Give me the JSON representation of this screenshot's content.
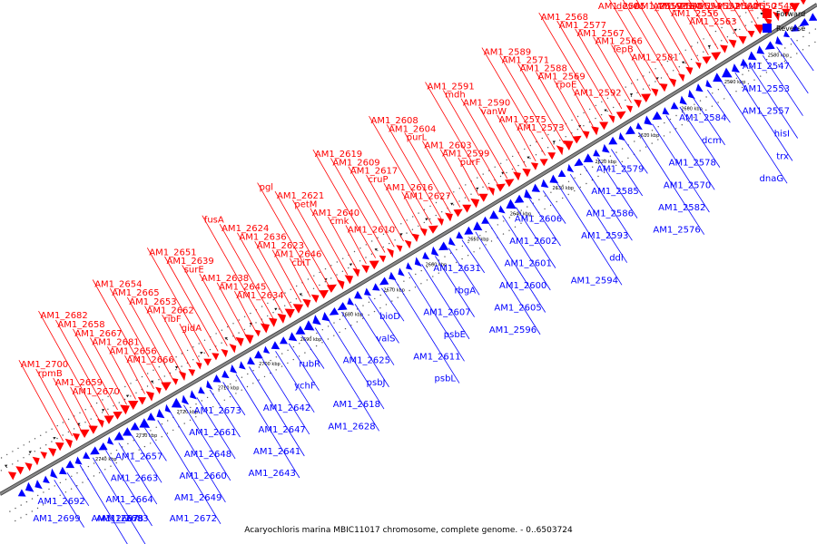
{
  "caption": "Acaryochloris marina MBIC11017 chromosome, complete genome. - 0..6503724",
  "legend": [
    {
      "label": "Forward",
      "color": "#ff0000"
    },
    {
      "label": "Reverse",
      "color": "#0000ff"
    }
  ],
  "colors": {
    "forward": "#ff0000",
    "reverse": "#0000ff",
    "backbone": "#888888"
  },
  "kbp_ticks": [
    "2580 kbp",
    "2590 kbp",
    "2600 kbp",
    "2610 kbp",
    "2620 kbp",
    "2630 kbp",
    "2640 kbp",
    "2650 kbp",
    "2660 kbp",
    "2670 kbp",
    "2680 kbp",
    "2690 kbp",
    "2700 kbp",
    "2710 kbp",
    "2720 kbp",
    "2730 kbp",
    "2740 kbp"
  ],
  "reverse_labels": [
    "AM1_2547",
    "AM1_2553",
    "AM1_2557",
    "hisI",
    "trx",
    "dnaG",
    "AM1_2584",
    "dcm",
    "AM1_2578",
    "AM1_2570",
    "AM1_2582",
    "AM1_2576",
    "AM1_2579",
    "AM1_2585",
    "AM1_2586",
    "AM1_2593",
    "ddl",
    "AM1_2594",
    "AM1_2606",
    "AM1_2602",
    "AM1_2601",
    "AM1_2600",
    "AM1_2605",
    "AM1_2596",
    "AM1_2631",
    "rbgA",
    "AM1_2607",
    "psbE",
    "AM1_2611",
    "psbL",
    "bioD",
    "valS",
    "AM1_2625",
    "psbJ",
    "AM1_2618",
    "AM1_2628",
    "rubR",
    "ychF",
    "AM1_2642",
    "AM1_2647",
    "AM1_2641",
    "AM1_2643",
    "AM1_2673",
    "AM1_2661",
    "AM1_2648",
    "AM1_2660",
    "AM1_2649",
    "AM1_2672",
    "AM1_2657",
    "AM1_2663",
    "AM1_2664",
    "AM1_2683",
    "AM1_2678",
    "AM1_2687",
    "AM1_2692",
    "AM1_2699"
  ],
  "forward_labels": [
    "AM1_2548",
    "AM1_2550",
    "AM1_2560",
    "AM1_2552",
    "AM1_2554",
    "AM1_2555",
    "AM1_2563",
    "AM1_2556",
    "AM1_2564",
    "AM1_2559",
    "devC",
    "AM1_2565",
    "AM1_2581",
    "lepB",
    "AM1_2566",
    "AM1_2567",
    "AM1_2577",
    "AM1_2568",
    "AM1_2592",
    "rpoE",
    "AM1_2569",
    "AM1_2588",
    "AM1_2571",
    "AM1_2589",
    "AM1_2573",
    "AM1_2575",
    "vanW",
    "AM1_2590",
    "mdh",
    "AM1_2591",
    "purF",
    "AM1_2599",
    "AM1_2603",
    "purL",
    "AM1_2604",
    "AM1_2608",
    "AM1_2627",
    "AM1_2616",
    "cruP",
    "AM1_2617",
    "AM1_2609",
    "AM1_2619",
    "AM1_2610",
    "cmk",
    "AM1_2640",
    "petM",
    "AM1_2621",
    "pgl",
    "cbiT",
    "AM1_2646",
    "AM1_2623",
    "AM1_2636",
    "AM1_2624",
    "fusA",
    "AM1_2634",
    "AM1_2645",
    "AM1_2638",
    "surE",
    "AM1_2639",
    "AM1_2651",
    "gidA",
    "ribF",
    "AM1_2662",
    "AM1_2653",
    "AM1_2665",
    "AM1_2654",
    "AM1_2666",
    "AM1_2656",
    "AM1_2681",
    "AM1_2667",
    "AM1_2658",
    "AM1_2682",
    "AM1_2670",
    "AM1_2659",
    "rpmB",
    "AM1_2700"
  ]
}
